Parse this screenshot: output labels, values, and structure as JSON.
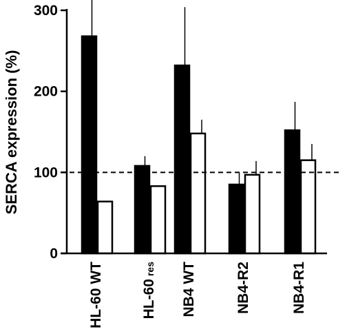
{
  "chart_data": {
    "type": "bar",
    "title": "",
    "xlabel": "",
    "ylabel": "SERCA expression (%)",
    "ylim": [
      0,
      300
    ],
    "yticks": [
      "0",
      "100",
      "200",
      "300"
    ],
    "categories": [
      "HL-60 WT",
      "HL-60 res",
      "NB4 WT",
      "NB4-R2",
      "NB4-R1"
    ],
    "category_main": [
      "HL-60 WT",
      "HL-60",
      "NB4 WT",
      "NB4-R2",
      "NB4-R1"
    ],
    "category_sub": [
      "",
      "res",
      "",
      "",
      ""
    ],
    "series": [
      {
        "fill": "#000000",
        "values": [
          268,
          108,
          232,
          85,
          152
        ],
        "errors": [
          55,
          12,
          72,
          15,
          35
        ]
      },
      {
        "fill": "#ffffff",
        "values": [
          64,
          83,
          148,
          97,
          115
        ],
        "errors": [
          0,
          0,
          17,
          17,
          20
        ]
      }
    ],
    "reference_line": {
      "value": 100,
      "style": "dashed"
    },
    "grid": false,
    "legend": "none"
  }
}
